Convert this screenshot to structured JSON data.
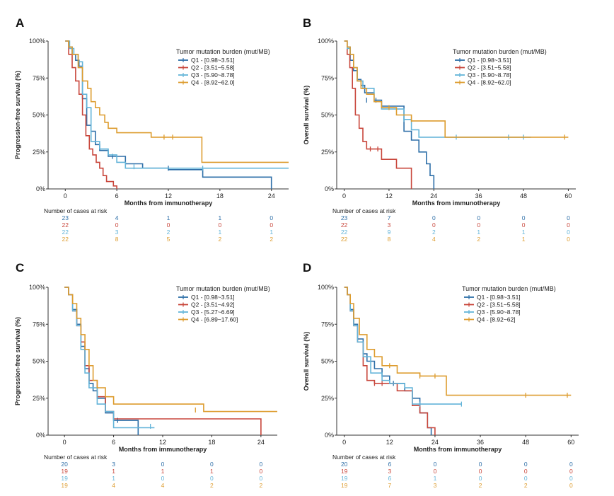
{
  "colors": {
    "Q1": "#2e6fa8",
    "Q2": "#c8463b",
    "Q3": "#63b4d9",
    "Q4": "#dd9c2f"
  },
  "chart_data": [
    {
      "type": "line",
      "panel": "A",
      "ylabel": "Progression-free survival (%)",
      "xlabel": "Months from immunotherapy",
      "xlim": [
        -2,
        26
      ],
      "ylim": [
        0,
        1
      ],
      "xticks": [
        0,
        6,
        12,
        18,
        24
      ],
      "yticks": [
        "0%",
        "25%",
        "50%",
        "75%",
        "100%"
      ],
      "legend_title": "Tumor mutation burden (mut/MB)",
      "risk_title": "Number of cases at risk",
      "series": [
        {
          "name": "Q1 - [0.98~3.51]",
          "key": "Q1",
          "x": [
            0,
            0.4,
            0.8,
            1.2,
            1.6,
            2,
            2.5,
            3,
            3.5,
            4,
            5,
            7,
            9,
            10,
            12,
            16,
            18,
            20,
            24
          ],
          "y": [
            1,
            0.96,
            0.91,
            0.87,
            0.83,
            0.61,
            0.43,
            0.39,
            0.3,
            0.26,
            0.22,
            0.17,
            0.14,
            0.14,
            0.13,
            0.08,
            0.08,
            0.08,
            0
          ],
          "censor": [
            [
              5.5,
              0.22
            ],
            [
              7,
              0.17
            ],
            [
              12,
              0.14
            ]
          ],
          "risk": [
            "23",
            "4",
            "1",
            "1",
            "0"
          ]
        },
        {
          "name": "Q2 - [3.51~5.58]",
          "key": "Q2",
          "x": [
            0,
            0.4,
            0.8,
            1.2,
            1.6,
            2,
            2.4,
            2.8,
            3.2,
            3.6,
            4,
            4.4,
            4.8,
            5.2,
            5.6,
            6
          ],
          "y": [
            1,
            0.91,
            0.82,
            0.73,
            0.64,
            0.5,
            0.36,
            0.27,
            0.23,
            0.18,
            0.14,
            0.09,
            0.05,
            0.05,
            0.02,
            0
          ],
          "censor": [],
          "risk": [
            "22",
            "0",
            "0",
            "0",
            "0"
          ]
        },
        {
          "name": "Q3 - [5.90~8.78]",
          "key": "Q3",
          "x": [
            0,
            0.5,
            1,
            1.5,
            2,
            2.5,
            3,
            4,
            5,
            6,
            7,
            9,
            26
          ],
          "y": [
            1,
            0.95,
            0.91,
            0.86,
            0.64,
            0.55,
            0.32,
            0.27,
            0.23,
            0.18,
            0.14,
            0.14,
            0.14
          ],
          "censor": [
            [
              8,
              0.15
            ],
            [
              16,
              0.14
            ]
          ],
          "risk": [
            "22",
            "3",
            "2",
            "1",
            "1"
          ]
        },
        {
          "name": "Q4 - [8.92~62.0]",
          "key": "Q4",
          "x": [
            0,
            0.4,
            0.8,
            1.5,
            2,
            2.6,
            3,
            3.5,
            4,
            4.6,
            5,
            6,
            8,
            10,
            12,
            14,
            15.5,
            15.9,
            26
          ],
          "y": [
            1,
            0.96,
            0.91,
            0.82,
            0.73,
            0.68,
            0.59,
            0.55,
            0.5,
            0.45,
            0.41,
            0.38,
            0.38,
            0.35,
            0.35,
            0.35,
            0.35,
            0.18,
            0.18
          ],
          "censor": [
            [
              11.5,
              0.35
            ],
            [
              12.5,
              0.35
            ]
          ],
          "risk": [
            "22",
            "8",
            "5",
            "2",
            "2"
          ]
        }
      ]
    },
    {
      "type": "line",
      "panel": "B",
      "ylabel": "Overall survival (%)",
      "xlabel": "Months from immunotherapy",
      "xlim": [
        -2,
        62
      ],
      "ylim": [
        0,
        1
      ],
      "xticks": [
        0,
        12,
        24,
        36,
        48,
        60
      ],
      "yticks": [
        "0%",
        "25%",
        "50%",
        "75%",
        "100%"
      ],
      "legend_title": "Tumor mutation burden (mut/MB)",
      "risk_title": "Number of cases at risk",
      "series": [
        {
          "name": "Q1 - [0.98~3.51]",
          "key": "Q1",
          "x": [
            0,
            0.8,
            1.6,
            2.5,
            3.5,
            4.5,
            5.5,
            8,
            10,
            12,
            16,
            18,
            20,
            22,
            23,
            24
          ],
          "y": [
            1,
            0.96,
            0.87,
            0.8,
            0.74,
            0.7,
            0.65,
            0.6,
            0.56,
            0.56,
            0.39,
            0.33,
            0.25,
            0.17,
            0.09,
            0
          ],
          "censor": [
            [
              6,
              0.6
            ],
            [
              8.5,
              0.6
            ]
          ],
          "risk": [
            "23",
            "7",
            "0",
            "0",
            "0",
            "0"
          ]
        },
        {
          "name": "Q2 - [3.51~5.58]",
          "key": "Q2",
          "x": [
            0,
            0.8,
            1.5,
            2.2,
            3,
            4,
            5,
            6,
            8,
            10,
            12,
            14,
            18
          ],
          "y": [
            1,
            0.91,
            0.82,
            0.68,
            0.5,
            0.41,
            0.32,
            0.27,
            0.27,
            0.2,
            0.2,
            0.14,
            0
          ],
          "censor": [
            [
              7,
              0.27
            ],
            [
              9,
              0.27
            ]
          ],
          "risk": [
            "22",
            "3",
            "0",
            "0",
            "0",
            "0"
          ]
        },
        {
          "name": "Q3 - [5.90~8.78]",
          "key": "Q3",
          "x": [
            0,
            0.8,
            1.6,
            2.5,
            3.5,
            5,
            8,
            10,
            12,
            16,
            18,
            20,
            22,
            24,
            36,
            48,
            50
          ],
          "y": [
            1,
            0.95,
            0.91,
            0.82,
            0.73,
            0.68,
            0.59,
            0.54,
            0.54,
            0.47,
            0.4,
            0.35,
            0.35,
            0.35,
            0.35,
            0.35,
            0.35
          ],
          "censor": [
            [
              16,
              0.47
            ],
            [
              30,
              0.35
            ],
            [
              44,
              0.35
            ],
            [
              48,
              0.35
            ]
          ],
          "risk": [
            "22",
            "9",
            "2",
            "1",
            "1",
            "0"
          ]
        },
        {
          "name": "Q4 - [8.92~62.0]",
          "key": "Q4",
          "x": [
            0,
            0.8,
            1.6,
            2.5,
            3.5,
            4.5,
            6,
            8,
            10,
            12,
            14,
            18,
            20,
            26,
            27,
            36,
            48,
            60
          ],
          "y": [
            1,
            0.96,
            0.91,
            0.82,
            0.73,
            0.68,
            0.64,
            0.59,
            0.55,
            0.55,
            0.5,
            0.46,
            0.46,
            0.46,
            0.35,
            0.35,
            0.35,
            0.35
          ],
          "censor": [
            [
              12,
              0.55
            ],
            [
              18,
              0.47
            ],
            [
              59,
              0.35
            ]
          ],
          "risk": [
            "22",
            "8",
            "4",
            "2",
            "1",
            "0"
          ]
        }
      ]
    },
    {
      "type": "line",
      "panel": "C",
      "ylabel": "Progression-free survival (%)",
      "xlabel": "Months from immunotherapy",
      "xlim": [
        -2,
        26
      ],
      "ylim": [
        0,
        1
      ],
      "xticks": [
        0,
        6,
        12,
        18,
        24
      ],
      "yticks": [
        "0%",
        "25%",
        "50%",
        "75%",
        "100%"
      ],
      "legend_title": "Tumor mutation burden (mut/MB)",
      "risk_title": "Number of cases at risk",
      "series": [
        {
          "name": "Q1 - [0.98~3.51]",
          "key": "Q1",
          "x": [
            0,
            0.5,
            1,
            1.5,
            2,
            2.5,
            3,
            3.5,
            4,
            5,
            6,
            8,
            9
          ],
          "y": [
            1,
            0.95,
            0.85,
            0.75,
            0.6,
            0.45,
            0.35,
            0.3,
            0.25,
            0.15,
            0.1,
            0.1,
            0
          ],
          "censor": [
            [
              6.5,
              0.1
            ]
          ],
          "risk": [
            "20",
            "3",
            "0",
            "0",
            "0"
          ]
        },
        {
          "name": "Q2 - [3.51~4.92]",
          "key": "Q2",
          "x": [
            0,
            0.5,
            1,
            1.5,
            2,
            2.5,
            3,
            4,
            5,
            6,
            8,
            12,
            18,
            23,
            24
          ],
          "y": [
            1,
            0.95,
            0.84,
            0.74,
            0.63,
            0.47,
            0.37,
            0.26,
            0.16,
            0.11,
            0.11,
            0.11,
            0.11,
            0.11,
            0
          ],
          "censor": [],
          "risk": [
            "19",
            "1",
            "1",
            "1",
            "0"
          ]
        },
        {
          "name": "Q3 - [5.27~6.69]",
          "key": "Q3",
          "x": [
            0,
            0.5,
            1,
            1.5,
            2,
            2.5,
            3,
            4,
            5,
            6,
            7,
            8,
            10,
            11
          ],
          "y": [
            1,
            0.95,
            0.84,
            0.74,
            0.58,
            0.42,
            0.32,
            0.21,
            0.16,
            0.05,
            0.05,
            0.05,
            0.05,
            0.05
          ],
          "censor": [
            [
              10.5,
              0.06
            ]
          ],
          "risk": [
            "19",
            "1",
            "0",
            "0",
            "0"
          ]
        },
        {
          "name": "Q4 - [6.89~17.60]",
          "key": "Q4",
          "x": [
            0,
            0.5,
            1,
            1.5,
            2,
            2.5,
            3,
            3.5,
            4,
            5,
            6,
            8,
            12,
            15,
            17,
            24,
            26
          ],
          "y": [
            1,
            0.95,
            0.89,
            0.79,
            0.68,
            0.58,
            0.47,
            0.37,
            0.32,
            0.26,
            0.21,
            0.21,
            0.21,
            0.21,
            0.16,
            0.16,
            0.16
          ],
          "censor": [
            [
              16,
              0.17
            ]
          ],
          "risk": [
            "19",
            "4",
            "4",
            "2",
            "2"
          ]
        }
      ]
    },
    {
      "type": "line",
      "panel": "D",
      "ylabel": "Overall survival (%)",
      "xlabel": "Months from immunotherapy",
      "xlim": [
        -2,
        62
      ],
      "ylim": [
        0,
        1
      ],
      "xticks": [
        0,
        12,
        24,
        36,
        48,
        60
      ],
      "yticks": [
        "0%",
        "25%",
        "50%",
        "75%",
        "100%"
      ],
      "legend_title": "Tumor mutation burden (mut/MB)",
      "risk_title": "Number of cases at risk",
      "series": [
        {
          "name": "Q1 - [0.98~3.51]",
          "key": "Q1",
          "x": [
            0,
            0.8,
            1.6,
            2.5,
            3.5,
            5,
            6,
            8,
            10,
            12,
            14,
            16,
            18,
            20,
            22,
            23
          ],
          "y": [
            1,
            0.95,
            0.85,
            0.75,
            0.65,
            0.55,
            0.5,
            0.45,
            0.4,
            0.35,
            0.35,
            0.3,
            0.25,
            0.15,
            0.05,
            0
          ],
          "censor": [
            [
              13,
              0.35
            ]
          ],
          "risk": [
            "20",
            "6",
            "0",
            "0",
            "0",
            "0"
          ]
        },
        {
          "name": "Q2 - [3.51~5.58]",
          "key": "Q2",
          "x": [
            0,
            0.8,
            1.6,
            2.5,
            3.5,
            5,
            6,
            8,
            10,
            12,
            14,
            18,
            20,
            22,
            24
          ],
          "y": [
            1,
            0.95,
            0.84,
            0.74,
            0.63,
            0.47,
            0.37,
            0.35,
            0.35,
            0.35,
            0.3,
            0.2,
            0.15,
            0.05,
            0
          ],
          "censor": [
            [
              8,
              0.35
            ],
            [
              10,
              0.35
            ]
          ],
          "risk": [
            "19",
            "3",
            "0",
            "0",
            "0",
            "0"
          ]
        },
        {
          "name": "Q3 - [5.90~8.78]",
          "key": "Q3",
          "x": [
            0,
            0.8,
            1.6,
            2.5,
            3.5,
            5,
            7,
            8,
            10,
            12,
            16,
            18,
            20,
            24,
            31
          ],
          "y": [
            1,
            0.95,
            0.84,
            0.74,
            0.63,
            0.53,
            0.42,
            0.42,
            0.37,
            0.35,
            0.32,
            0.21,
            0.21,
            0.21,
            0.21
          ],
          "censor": [
            [
              20,
              0.21
            ],
            [
              31,
              0.21
            ]
          ],
          "risk": [
            "19",
            "6",
            "1",
            "0",
            "0",
            "0"
          ]
        },
        {
          "name": "Q4 - [8.92~62]",
          "key": "Q4",
          "x": [
            0,
            0.8,
            1.6,
            2.5,
            4,
            6,
            8,
            10,
            12,
            14,
            18,
            20,
            26,
            27,
            36,
            48,
            60
          ],
          "y": [
            1,
            0.95,
            0.89,
            0.79,
            0.68,
            0.58,
            0.53,
            0.47,
            0.47,
            0.42,
            0.42,
            0.4,
            0.4,
            0.27,
            0.27,
            0.27,
            0.27
          ],
          "censor": [
            [
              12,
              0.47
            ],
            [
              20,
              0.4
            ],
            [
              24,
              0.4
            ],
            [
              48,
              0.27
            ],
            [
              59,
              0.27
            ]
          ],
          "risk": [
            "19",
            "7",
            "3",
            "2",
            "2",
            "0"
          ]
        }
      ]
    }
  ]
}
